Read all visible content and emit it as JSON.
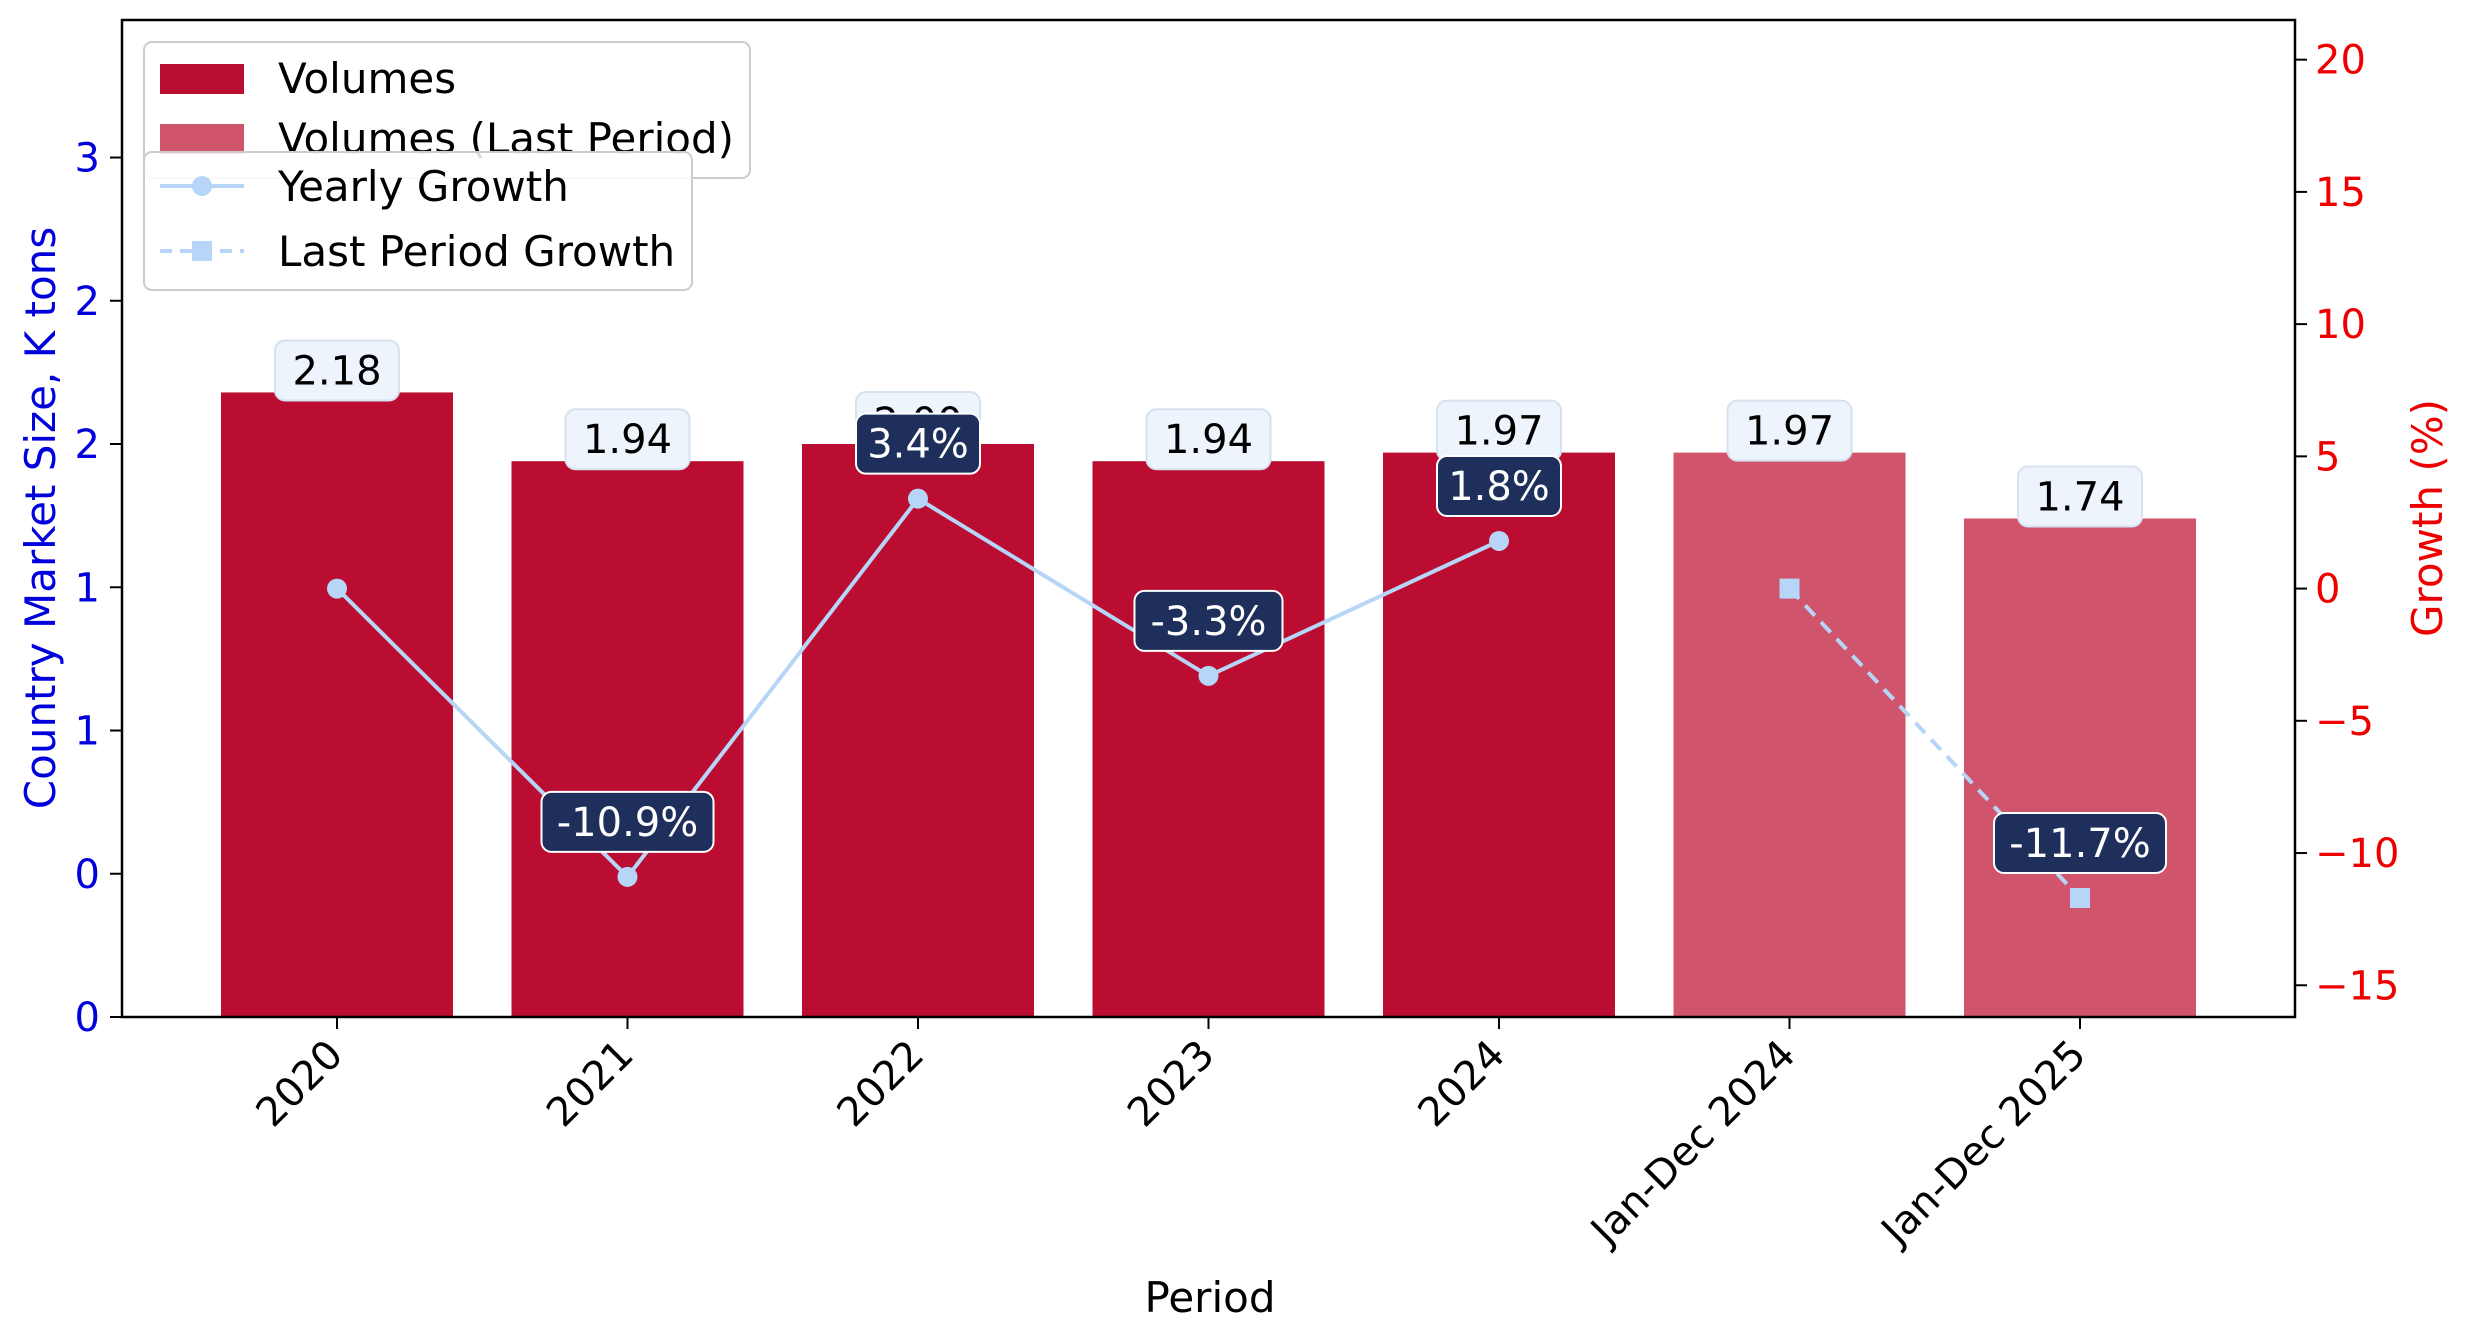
{
  "chart_data": {
    "type": "bar",
    "categories": [
      "2020",
      "2021",
      "2022",
      "2023",
      "2024",
      "Jan-Dec 2024",
      "Jan-Dec 2025"
    ],
    "series": [
      {
        "name": "Volumes",
        "values": [
          2.18,
          1.94,
          2.0,
          1.94,
          1.97,
          null,
          null
        ]
      },
      {
        "name": "Volumes (Last Period)",
        "values": [
          null,
          null,
          null,
          null,
          null,
          1.97,
          1.74
        ]
      },
      {
        "name": "Yearly Growth",
        "values": [
          0.0,
          -10.9,
          3.4,
          -3.3,
          1.8,
          null,
          null
        ]
      },
      {
        "name": "Last Period Growth",
        "values": [
          null,
          null,
          null,
          null,
          null,
          0.0,
          -11.7
        ]
      }
    ],
    "bar_labels": [
      "2.18",
      "1.94",
      "2.00",
      "1.94",
      "1.97",
      "1.97",
      "1.74"
    ],
    "growth_labels": [
      "",
      "-10.9%",
      "3.4%",
      "-3.3%",
      "1.8%",
      "",
      "-11.7%"
    ],
    "xlabel": "Period",
    "ylabel": "Country Market Size, K tons",
    "y2label": "Growth (%)",
    "ylim": [
      0,
      3.48
    ],
    "y2lim": [
      -16.2,
      21.5
    ],
    "yticks": [
      0,
      0.5,
      1.0,
      1.5,
      2.0,
      2.5,
      3.0
    ],
    "ytick_labels": [
      "0",
      "0",
      "1",
      "1",
      "2",
      "2",
      "3"
    ],
    "y2ticks": [
      -15,
      -10,
      -5,
      0,
      5,
      10,
      15,
      20
    ],
    "y2tick_labels": [
      "−15",
      "−10",
      "−5",
      "0",
      "5",
      "10",
      "15",
      "20"
    ],
    "grid": false,
    "legend_placement": "top-left",
    "colors": {
      "volumes": "#bb0c32",
      "volumes_last": "#d0546c",
      "growth_line": "#b7d5f7",
      "label_box_dark": "#1e2f5c",
      "label_box_light": "#eef4fb",
      "left_axis": "#0000dd",
      "right_axis": "#ee0000"
    }
  }
}
